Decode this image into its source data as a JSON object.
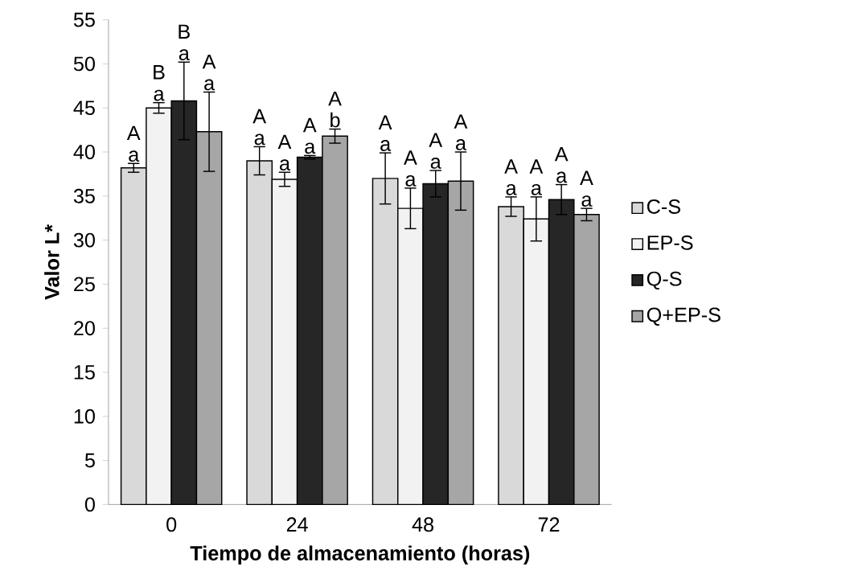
{
  "chart_data": {
    "type": "bar",
    "xlabel": "Tiempo de almacenamiento (horas)",
    "ylabel": "Valor L*",
    "categories": [
      "0",
      "24",
      "48",
      "72"
    ],
    "series": [
      {
        "name": "C-S",
        "color": "#d9d9d9",
        "values": [
          38.2,
          39.0,
          37.0,
          33.8
        ],
        "errors": [
          0.5,
          1.6,
          2.9,
          1.1
        ]
      },
      {
        "name": "EP-S",
        "color": "#f2f2f2",
        "values": [
          45.0,
          36.9,
          33.6,
          32.4
        ],
        "errors": [
          0.6,
          0.8,
          2.3,
          2.5
        ]
      },
      {
        "name": "Q-S",
        "color": "#262626",
        "values": [
          45.8,
          39.4,
          36.4,
          34.6
        ],
        "errors": [
          4.4,
          0.2,
          1.5,
          1.7
        ]
      },
      {
        "name": "Q+EP-S",
        "color": "#a6a6a6",
        "values": [
          42.3,
          41.8,
          36.7,
          32.9
        ],
        "errors": [
          4.5,
          0.8,
          3.3,
          0.7
        ]
      }
    ],
    "ylim": [
      0,
      55
    ],
    "yticks": [
      0,
      5,
      10,
      15,
      20,
      25,
      30,
      35,
      40,
      45,
      50,
      55
    ],
    "legend": "right",
    "annotations": [
      "A",
      "a",
      "B",
      "a",
      "B",
      "a",
      "A",
      "a",
      "A",
      "a",
      "A",
      "a",
      "A",
      "a",
      "A",
      "b",
      "A",
      "a",
      "A",
      "a",
      "A",
      "a",
      "A",
      "a",
      "A",
      "a",
      "A",
      "a",
      "A",
      "a",
      "A",
      "a"
    ]
  }
}
